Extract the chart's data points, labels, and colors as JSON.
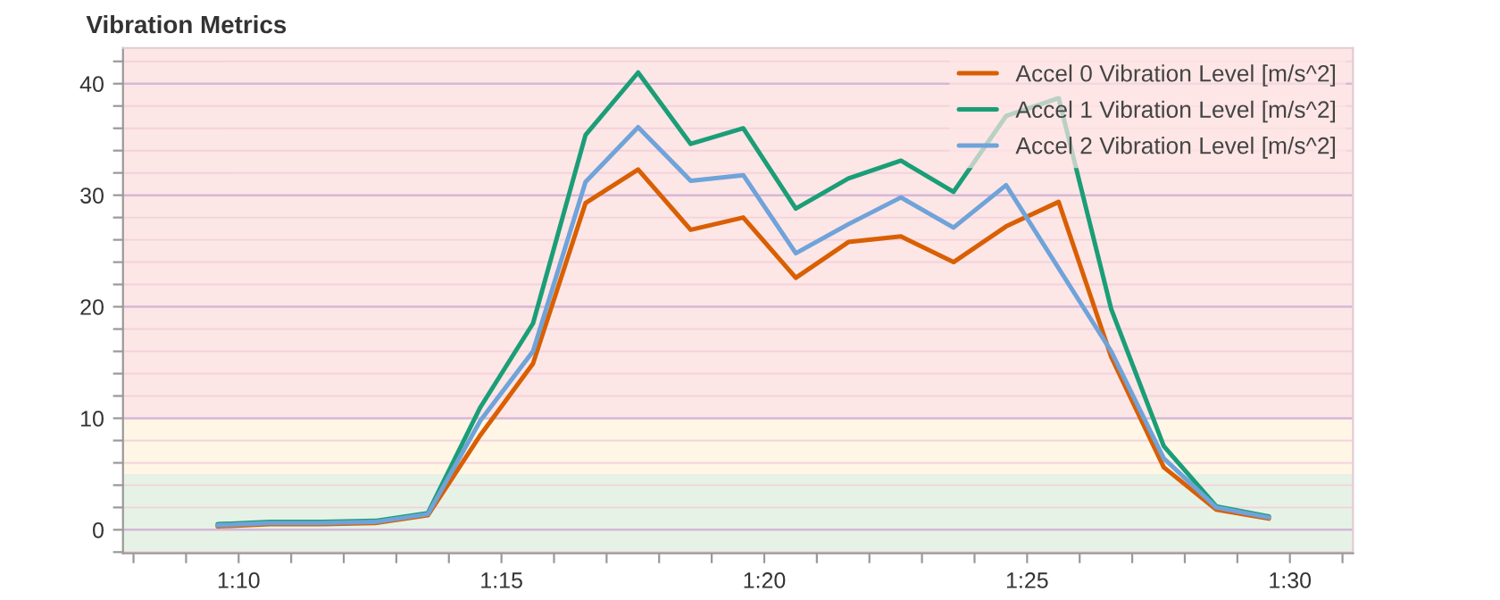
{
  "chart_data": {
    "type": "line",
    "title": "Vibration Metrics",
    "x": [
      69.6,
      70.6,
      71.6,
      72.6,
      73.6,
      74.6,
      75.6,
      76.6,
      77.6,
      78.6,
      79.6,
      80.6,
      81.6,
      82.6,
      83.6,
      84.6,
      85.6,
      86.6,
      87.6,
      88.6,
      89.6
    ],
    "series": [
      {
        "name": "Accel 0 Vibration Level [m/s^2]",
        "color": "#d95f02",
        "values": [
          0.3,
          0.5,
          0.5,
          0.6,
          1.3,
          8.5,
          14.9,
          29.3,
          32.3,
          26.9,
          28.0,
          22.6,
          25.8,
          26.3,
          24.0,
          27.2,
          29.4,
          15.5,
          5.6,
          1.8,
          1.0
        ]
      },
      {
        "name": "Accel 1 Vibration Level [m/s^2]",
        "color": "#1b9e77",
        "values": [
          0.5,
          0.7,
          0.7,
          0.8,
          1.5,
          11.0,
          18.5,
          35.4,
          41.0,
          34.6,
          36.0,
          28.8,
          31.5,
          33.1,
          30.3,
          37.1,
          38.7,
          19.8,
          7.5,
          2.1,
          1.2
        ]
      },
      {
        "name": "Accel 2 Vibration Level [m/s^2]",
        "color": "#6fa3d9",
        "values": [
          0.4,
          0.6,
          0.6,
          0.7,
          1.4,
          9.8,
          16.0,
          31.2,
          36.1,
          31.3,
          31.8,
          24.8,
          27.4,
          29.8,
          27.1,
          30.9,
          null,
          16.0,
          6.4,
          2.0,
          1.1
        ]
      }
    ],
    "xlim": [
      67.8,
      91.2
    ],
    "xticks": [
      {
        "value": 68,
        "label": null
      },
      {
        "value": 69,
        "label": null
      },
      {
        "value": 70,
        "label": "1:10"
      },
      {
        "value": 71,
        "label": null
      },
      {
        "value": 72,
        "label": null
      },
      {
        "value": 73,
        "label": null
      },
      {
        "value": 74,
        "label": null
      },
      {
        "value": 75,
        "label": "1:15"
      },
      {
        "value": 76,
        "label": null
      },
      {
        "value": 77,
        "label": null
      },
      {
        "value": 78,
        "label": null
      },
      {
        "value": 79,
        "label": null
      },
      {
        "value": 80,
        "label": "1:20"
      },
      {
        "value": 81,
        "label": null
      },
      {
        "value": 82,
        "label": null
      },
      {
        "value": 83,
        "label": null
      },
      {
        "value": 84,
        "label": null
      },
      {
        "value": 85,
        "label": "1:25"
      },
      {
        "value": 86,
        "label": null
      },
      {
        "value": 87,
        "label": null
      },
      {
        "value": 88,
        "label": null
      },
      {
        "value": 89,
        "label": null
      },
      {
        "value": 90,
        "label": "1:30"
      },
      {
        "value": 91,
        "label": null
      }
    ],
    "ylim": [
      -2.1,
      43.2
    ],
    "yticks": [
      {
        "value": -2,
        "label": null
      },
      0,
      {
        "value": 2,
        "label": null
      },
      {
        "value": 4,
        "label": null
      },
      {
        "value": 6,
        "label": null
      },
      {
        "value": 8,
        "label": null
      },
      10,
      {
        "value": 12,
        "label": null
      },
      {
        "value": 14,
        "label": null
      },
      {
        "value": 16,
        "label": null
      },
      {
        "value": 18,
        "label": null
      },
      20,
      {
        "value": 22,
        "label": null
      },
      {
        "value": 24,
        "label": null
      },
      {
        "value": 26,
        "label": null
      },
      {
        "value": 28,
        "label": null
      },
      30,
      {
        "value": 32,
        "label": null
      },
      {
        "value": 34,
        "label": null
      },
      {
        "value": 36,
        "label": null
      },
      {
        "value": 38,
        "label": null
      },
      40,
      {
        "value": 42,
        "label": null
      }
    ],
    "bands": [
      {
        "axis": "y",
        "from": -2.1,
        "to": 5,
        "color": "#e6f2e6"
      },
      {
        "axis": "y",
        "from": 5,
        "to": 10,
        "color": "#fff6e6"
      },
      {
        "axis": "y",
        "from": 10,
        "to": 43.2,
        "color": "#fde6e6"
      }
    ],
    "grid": "y",
    "legend": "top right",
    "line_style": "solid",
    "marker": "none"
  }
}
